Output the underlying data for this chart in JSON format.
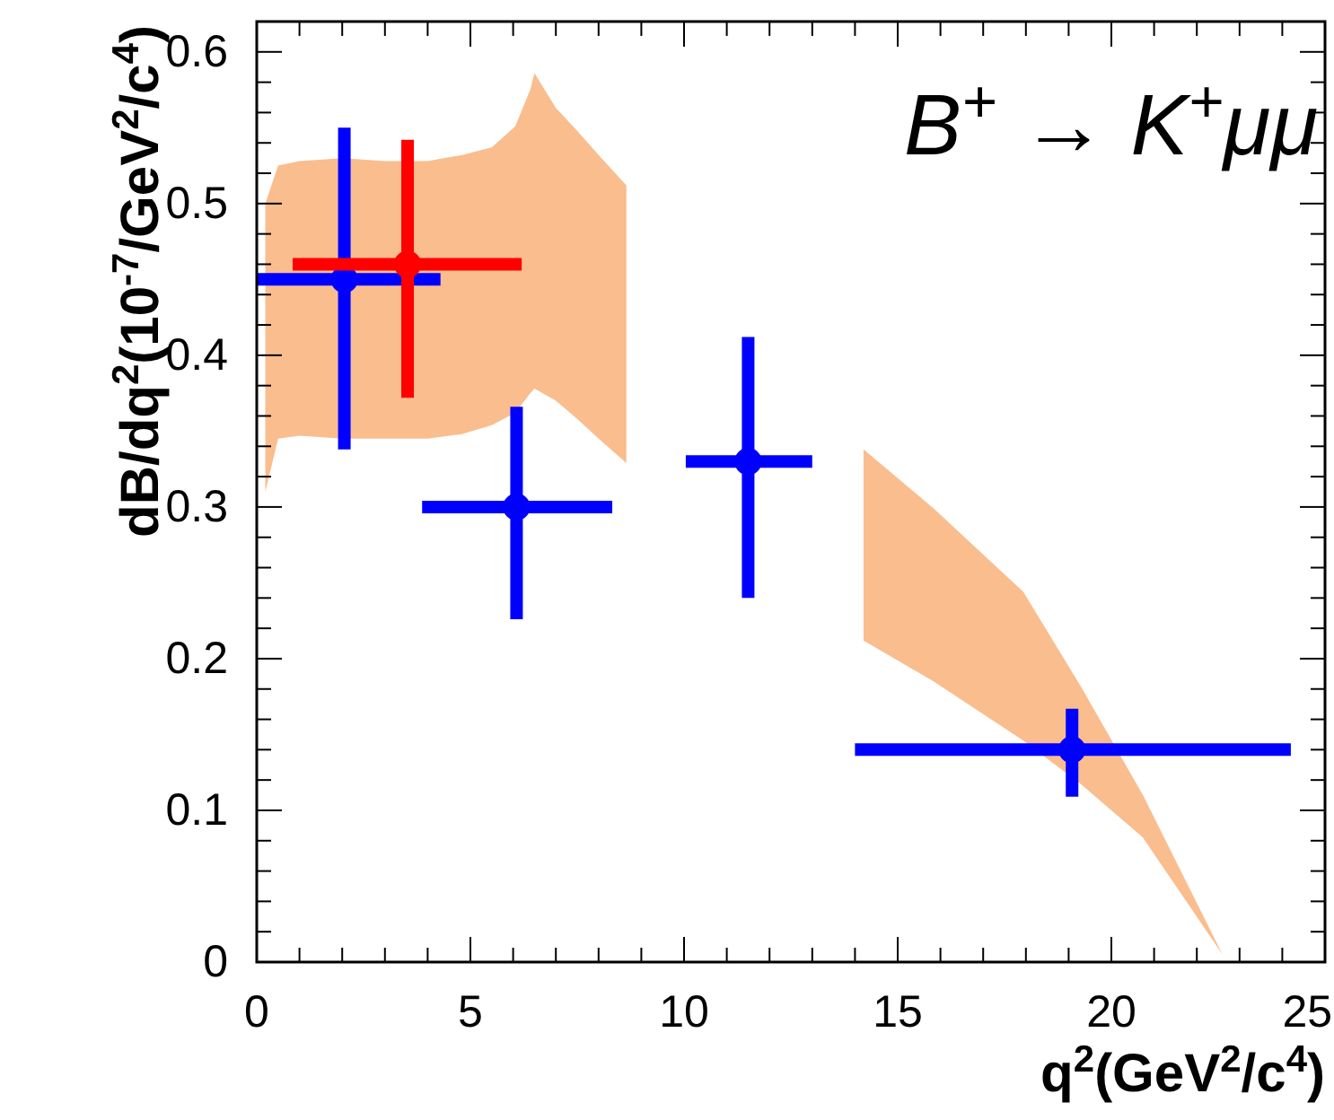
{
  "chart_data": {
    "type": "scatter",
    "xlabel": "q$^{2}$(GeV$^{2}$/c$^{4}$)",
    "ylabel": "dB/dq$^{2}$(10$^{-7}$/GeV$^{2}$/c$^{4}$)",
    "annotations": [
      "B$^{+}$ → K$^{+}$μμ"
    ],
    "xlim": [
      0,
      25
    ],
    "xticks": [
      0,
      {
        "value": 1,
        "label": null
      },
      {
        "value": 2,
        "label": null
      },
      {
        "value": 3,
        "label": null
      },
      {
        "value": 4,
        "label": null
      },
      5,
      {
        "value": 6,
        "label": null
      },
      {
        "value": 7,
        "label": null
      },
      {
        "value": 8,
        "label": null
      },
      {
        "value": 9,
        "label": null
      },
      10,
      {
        "value": 11,
        "label": null
      },
      {
        "value": 12,
        "label": null
      },
      {
        "value": 13,
        "label": null
      },
      {
        "value": 14,
        "label": null
      },
      15,
      {
        "value": 16,
        "label": null
      },
      {
        "value": 17,
        "label": null
      },
      {
        "value": 18,
        "label": null
      },
      {
        "value": 19,
        "label": null
      },
      20,
      {
        "value": 21,
        "label": null
      },
      {
        "value": 22,
        "label": null
      },
      {
        "value": 23,
        "label": null
      },
      {
        "value": 24,
        "label": null
      },
      25
    ],
    "ylim": [
      0,
      0.62
    ],
    "yticks": [
      0,
      {
        "value": 0.02,
        "label": null
      },
      {
        "value": 0.04,
        "label": null
      },
      {
        "value": 0.06,
        "label": null
      },
      {
        "value": 0.08,
        "label": null
      },
      0.1,
      {
        "value": 0.12,
        "label": null
      },
      {
        "value": 0.14,
        "label": null
      },
      {
        "value": 0.16,
        "label": null
      },
      {
        "value": 0.18,
        "label": null
      },
      0.2,
      {
        "value": 0.22,
        "label": null
      },
      {
        "value": 0.24,
        "label": null
      },
      {
        "value": 0.26,
        "label": null
      },
      {
        "value": 0.28,
        "label": null
      },
      0.3,
      {
        "value": 0.32,
        "label": null
      },
      {
        "value": 0.34,
        "label": null
      },
      {
        "value": 0.36,
        "label": null
      },
      {
        "value": 0.38,
        "label": null
      },
      0.4,
      {
        "value": 0.42,
        "label": null
      },
      {
        "value": 0.44,
        "label": null
      },
      {
        "value": 0.46,
        "label": null
      },
      {
        "value": 0.48,
        "label": null
      },
      0.5,
      {
        "value": 0.52,
        "label": null
      },
      {
        "value": 0.54,
        "label": null
      },
      {
        "value": 0.56,
        "label": null
      },
      {
        "value": 0.58,
        "label": null
      },
      0.6
    ],
    "marker": "circle",
    "grid": false,
    "series": [
      {
        "type": "area",
        "color": "#f9b27a",
        "x": [
          0.2,
          0.5,
          1,
          2,
          3,
          4,
          4.8,
          5.5,
          6.05,
          6.4,
          6.5,
          7,
          7.5,
          8,
          8.65
        ],
        "values": [
          null,
          null,
          null,
          null,
          null,
          null,
          null,
          null,
          null,
          null,
          null,
          null,
          null,
          null,
          null
        ],
        "lower": [
          0.31,
          0.345,
          0.347,
          0.345,
          0.345,
          0.345,
          0.348,
          0.354,
          0.362,
          0.375,
          0.378,
          0.37,
          0.358,
          0.345,
          0.329
        ],
        "upper": [
          0.5,
          0.525,
          0.528,
          0.53,
          0.528,
          0.528,
          0.532,
          0.537,
          0.551,
          0.575,
          0.586,
          0.563,
          0.548,
          0.532,
          0.512
        ]
      },
      {
        "type": "area",
        "color": "#f9b27a",
        "x": [
          14.2,
          15.84,
          17.94,
          19.3,
          20.74,
          22.6
        ],
        "values": [
          null,
          null,
          null,
          null,
          null,
          null
        ],
        "lower": [
          0.212,
          0.185,
          0.146,
          0.117,
          0.082,
          0.005
        ],
        "upper": [
          0.338,
          0.299,
          0.244,
          0.181,
          0.11,
          0.005
        ]
      },
      {
        "color": "#0000ff",
        "x": [
          2.05,
          6.08,
          11.5,
          19.08
        ],
        "values": [
          0.45,
          0.3,
          0.33,
          0.14
        ],
        "errors": [
          [
            0.338,
            0.55
          ],
          [
            0.226,
            0.366
          ],
          [
            0.24,
            0.412
          ],
          [
            0.109,
            0.167
          ]
        ],
        "xerrors": [
          [
            0,
            4.3
          ],
          [
            3.87,
            8.32
          ],
          [
            10.04,
            13
          ],
          [
            14,
            24.2
          ]
        ]
      },
      {
        "color": "#ff0000",
        "x": [
          3.53
        ],
        "values": [
          0.46
        ],
        "errors": [
          [
            0.372,
            0.542
          ]
        ],
        "xerrors": [
          [
            0.84,
            6.2
          ]
        ]
      }
    ]
  }
}
